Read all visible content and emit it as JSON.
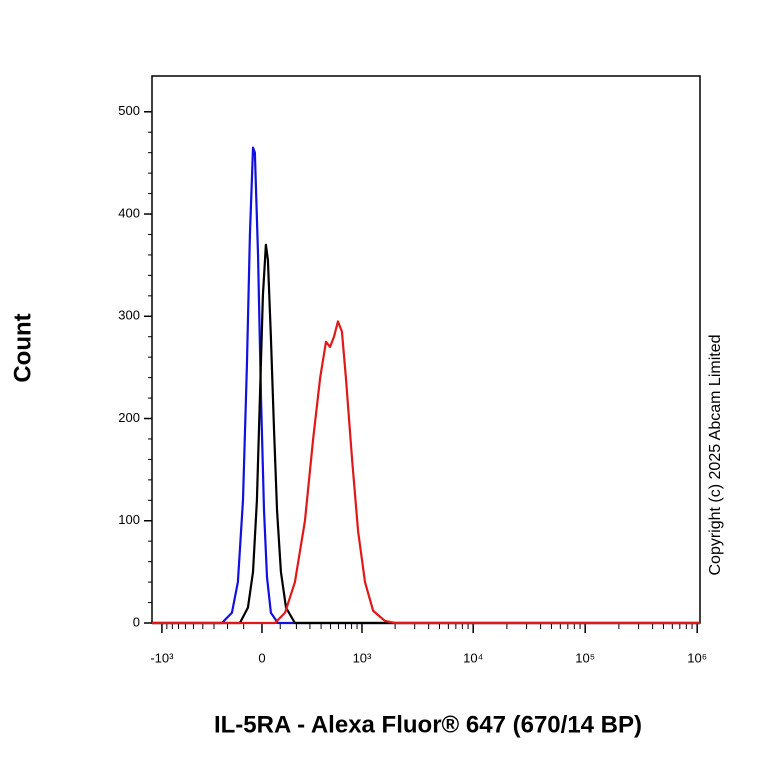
{
  "chart_data": {
    "type": "line",
    "xlabel": "IL-5RA - Alexa Fluor® 647 (670/14 BP)",
    "ylabel": "Count",
    "annotation": "Copyright (c) 2025 Abcam Limited",
    "xscale": "biexponential",
    "xlim": [
      -1233,
      1060000
    ],
    "ylim": [
      0,
      535
    ],
    "xticks": [
      {
        "value": -1000,
        "label": "-10³"
      },
      0,
      {
        "value": 1000,
        "label": "10³"
      },
      {
        "value": 10000,
        "label": "10⁴"
      },
      {
        "value": 100000,
        "label": "10⁵"
      },
      {
        "value": 1000000,
        "label": "10⁶"
      }
    ],
    "yticks": [
      0,
      100,
      200,
      300,
      400,
      500
    ],
    "series": [
      {
        "name": "Blue",
        "color": "#1010e0",
        "x": [
          -1233,
          -239,
          -171,
          -134,
          -104,
          -82,
          -65,
          -48,
          -38,
          -21,
          -5,
          11,
          27,
          48,
          87,
          1060000
        ],
        "values": [
          0,
          0,
          10,
          40,
          120,
          250,
          380,
          465,
          460,
          360,
          220,
          110,
          45,
          10,
          0,
          0
        ]
      },
      {
        "name": "Black",
        "color": "#000000",
        "x": [
          -1233,
          -122,
          -76,
          -48,
          -27,
          -11,
          5,
          21,
          32,
          48,
          65,
          82,
          104,
          134,
          190,
          1060000
        ],
        "values": [
          0,
          0,
          15,
          50,
          120,
          220,
          320,
          370,
          355,
          280,
          190,
          110,
          50,
          15,
          0,
          0
        ]
      },
      {
        "name": "Red",
        "color": "#e01818",
        "x": [
          -1233,
          70,
          128,
          190,
          261,
          327,
          391,
          450,
          495,
          542,
          593,
          648,
          707,
          809,
          920,
          1066,
          1264,
          1622,
          2000,
          1060000
        ],
        "values": [
          0,
          0,
          10,
          40,
          100,
          180,
          240,
          275,
          270,
          280,
          295,
          285,
          240,
          160,
          90,
          40,
          12,
          2,
          0,
          0
        ]
      }
    ]
  }
}
